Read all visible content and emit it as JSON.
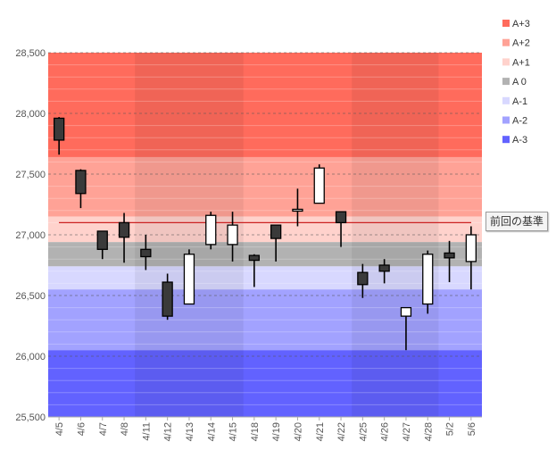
{
  "chart_data": {
    "type": "candlestick",
    "title": "",
    "xlabel": "",
    "ylabel": "",
    "ylim": [
      25500,
      28500
    ],
    "yticks": [
      25500,
      26000,
      26500,
      27000,
      27500,
      28000,
      28500
    ],
    "ytick_labels": [
      "25,500",
      "26,000",
      "26,500",
      "27,000",
      "27,500",
      "28,000",
      "28,500"
    ],
    "grid": "dashed horizontal",
    "legend_position": "right",
    "categories": [
      "4/5",
      "4/6",
      "4/7",
      "4/8",
      "4/11",
      "4/12",
      "4/13",
      "4/14",
      "4/15",
      "4/18",
      "4/19",
      "4/20",
      "4/21",
      "4/22",
      "4/25",
      "4/26",
      "4/27",
      "4/28",
      "5/2",
      "5/6"
    ],
    "ohlc": [
      {
        "open": 27960,
        "high": 27970,
        "low": 27660,
        "close": 27780
      },
      {
        "open": 27530,
        "high": 27540,
        "low": 27220,
        "close": 27340
      },
      {
        "open": 27030,
        "high": 27030,
        "low": 26800,
        "close": 26880
      },
      {
        "open": 27100,
        "high": 27180,
        "low": 26770,
        "close": 26980
      },
      {
        "open": 26880,
        "high": 27000,
        "low": 26710,
        "close": 26820
      },
      {
        "open": 26610,
        "high": 26680,
        "low": 26300,
        "close": 26330
      },
      {
        "open": 26430,
        "high": 26880,
        "low": 26430,
        "close": 26840
      },
      {
        "open": 26920,
        "high": 27190,
        "low": 26880,
        "close": 27160
      },
      {
        "open": 26920,
        "high": 27190,
        "low": 26780,
        "close": 27080
      },
      {
        "open": 26830,
        "high": 26840,
        "low": 26570,
        "close": 26790
      },
      {
        "open": 27080,
        "high": 27080,
        "low": 26780,
        "close": 26970
      },
      {
        "open": 27210,
        "high": 27380,
        "low": 27070,
        "close": 27210
      },
      {
        "open": 27260,
        "high": 27580,
        "low": 27260,
        "close": 27550
      },
      {
        "open": 27190,
        "high": 27190,
        "low": 26900,
        "close": 27100
      },
      {
        "open": 26690,
        "high": 26760,
        "low": 26480,
        "close": 26590
      },
      {
        "open": 26750,
        "high": 26800,
        "low": 26600,
        "close": 26700
      },
      {
        "open": 26330,
        "high": 26400,
        "low": 26050,
        "close": 26400
      },
      {
        "open": 26430,
        "high": 26870,
        "low": 26350,
        "close": 26840
      },
      {
        "open": 26850,
        "high": 26950,
        "low": 26610,
        "close": 26810
      },
      {
        "open": 26780,
        "high": 27070,
        "low": 26550,
        "close": 27000
      }
    ],
    "reference_line": {
      "label": "前回の基準",
      "value": 27100,
      "color": "#cc2222"
    },
    "bands": [
      {
        "name": "A+3",
        "from": 27640,
        "to": 28500,
        "color": "#ff6b5c"
      },
      {
        "name": "A+2",
        "from": 27150,
        "to": 27640,
        "color": "#ffa296"
      },
      {
        "name": "A+1",
        "from": 26940,
        "to": 27150,
        "color": "#ffd2cc"
      },
      {
        "name": "A 0",
        "from": 26740,
        "to": 26940,
        "color": "#b2b2b2"
      },
      {
        "name": "A-1",
        "from": 26550,
        "to": 26740,
        "color": "#d8d8ff"
      },
      {
        "name": "A-2",
        "from": 26050,
        "to": 26550,
        "color": "#a2a2ff"
      },
      {
        "name": "A-3",
        "from": 25500,
        "to": 26050,
        "color": "#6262ff"
      }
    ],
    "week_shading": [
      {
        "from_index": 4,
        "to_index": 8,
        "color": "#000000",
        "opacity": 0.06
      },
      {
        "from_index": 14,
        "to_index": 17,
        "color": "#000000",
        "opacity": 0.06
      }
    ]
  }
}
